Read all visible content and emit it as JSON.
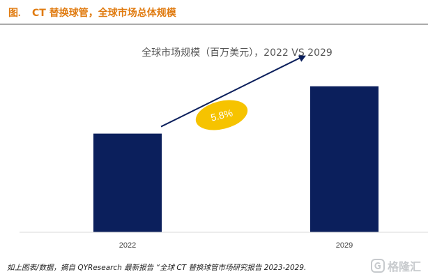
{
  "figure": {
    "label": "图.",
    "title": "CT 替换球管，全球市场总体规模"
  },
  "chart_data": {
    "type": "bar",
    "title": "全球市场规模（百万美元），2022 VS 2029",
    "categories": [
      "2022",
      "2029"
    ],
    "values": [
      100,
      148
    ],
    "ylim": [
      0,
      210
    ],
    "grid": false,
    "legend": "none",
    "annotation": {
      "text": "5.8%",
      "kind": "growth-arrow"
    },
    "colors": {
      "bar": "#0b1f5c",
      "badge": "#f6c300",
      "badge_text": "#ffffff"
    }
  },
  "footnote": "如上图表/数据，摘自 QYResearch 最新报告 “全球 CT 替换球管市场研究报告 2023-2029.",
  "watermark": {
    "text": "格隆汇",
    "icon": "logo-icon"
  }
}
